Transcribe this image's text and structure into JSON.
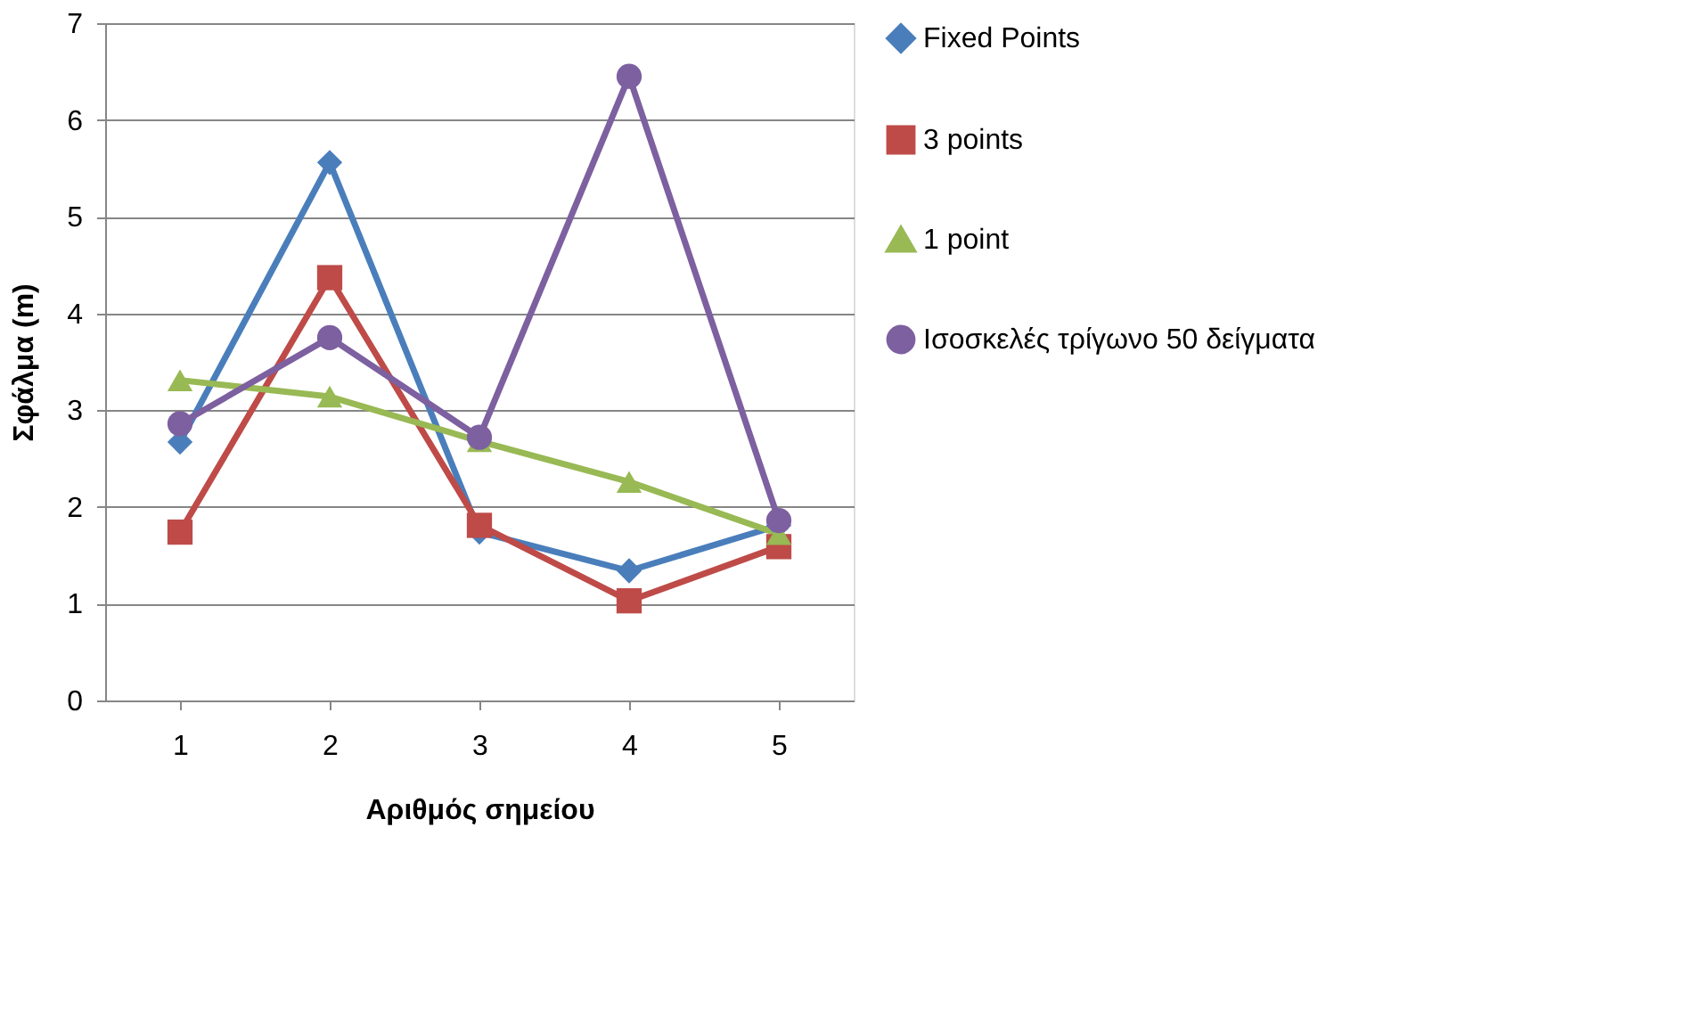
{
  "chart_data": {
    "type": "line",
    "xlabel": "Αριθμός σημείου",
    "ylabel": "Σφάλμα (m)",
    "categories": [
      "1",
      "2",
      "3",
      "4",
      "5"
    ],
    "ylim": [
      0,
      7
    ],
    "yticks": [
      0,
      1,
      2,
      3,
      4,
      5,
      6,
      7
    ],
    "grid": "y",
    "legend": "right",
    "line_style": "solid",
    "series": [
      {
        "name": "Fixed Points",
        "color": "#4a7ebb",
        "marker": "diamond",
        "values": [
          2.67,
          5.56,
          1.74,
          1.34,
          1.81
        ]
      },
      {
        "name": "3 points",
        "color": "#be4b48",
        "marker": "square",
        "values": [
          1.74,
          4.37,
          1.81,
          1.03,
          1.59
        ]
      },
      {
        "name": "1 point",
        "color": "#98b954",
        "marker": "triangle",
        "values": [
          3.31,
          3.14,
          2.68,
          2.26,
          1.72
        ]
      },
      {
        "name": "Ισοσκελές τρίγωνο 50 δείγματα",
        "color": "#7d60a0",
        "marker": "circle",
        "values": [
          2.86,
          3.75,
          2.72,
          6.45,
          1.86
        ]
      }
    ]
  }
}
